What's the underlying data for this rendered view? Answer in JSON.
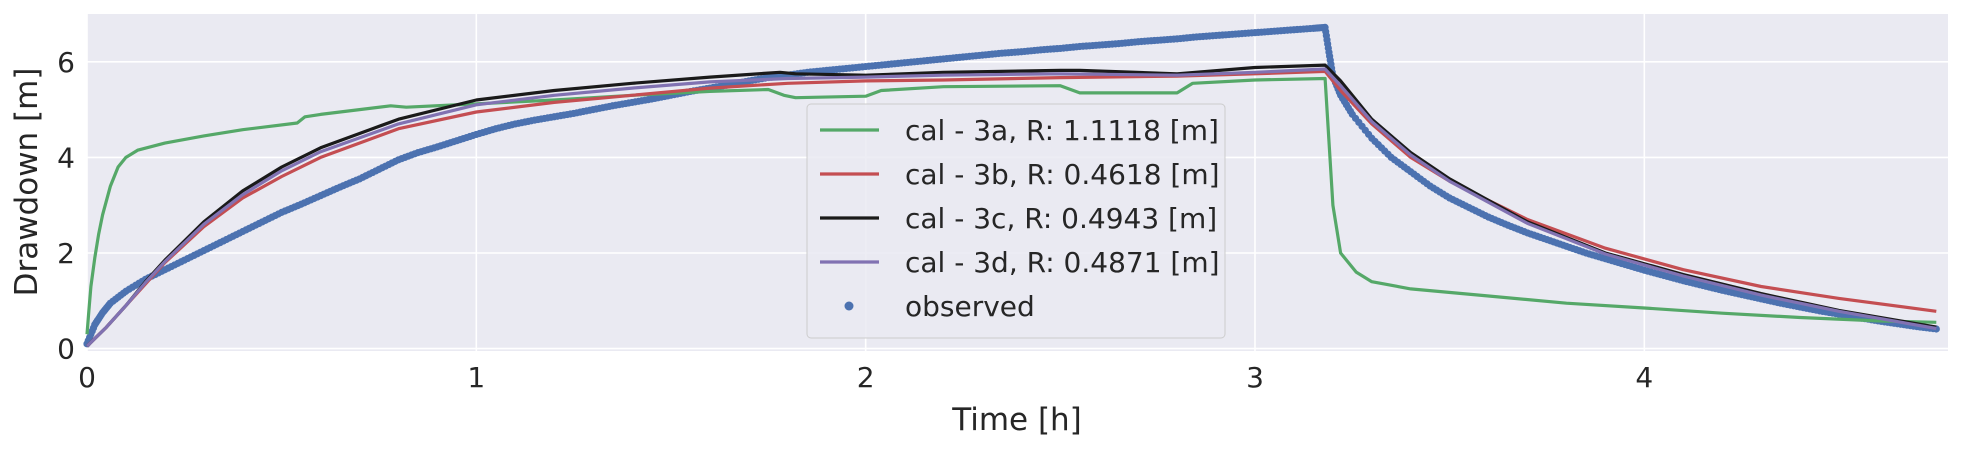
{
  "chart_data": {
    "type": "line",
    "title": "",
    "xlabel": "Time [h]",
    "ylabel": "Drawdown [m]",
    "xlim": [
      0,
      4.78
    ],
    "ylim": [
      -0.05,
      7.0
    ],
    "xticks": [
      0,
      1,
      2,
      3,
      4
    ],
    "yticks": [
      0,
      2,
      4,
      6
    ],
    "grid": true,
    "legend_position": "center",
    "series": [
      {
        "name": "cal - 3a, R: 1.1118 [m]",
        "kind": "line",
        "color": "#55a868",
        "points": [
          [
            0,
            0.3
          ],
          [
            0.005,
            0.8
          ],
          [
            0.01,
            1.3
          ],
          [
            0.02,
            1.9
          ],
          [
            0.03,
            2.4
          ],
          [
            0.04,
            2.8
          ],
          [
            0.06,
            3.4
          ],
          [
            0.08,
            3.8
          ],
          [
            0.1,
            4.0
          ],
          [
            0.13,
            4.15
          ],
          [
            0.2,
            4.3
          ],
          [
            0.3,
            4.45
          ],
          [
            0.4,
            4.58
          ],
          [
            0.54,
            4.72
          ],
          [
            0.56,
            4.85
          ],
          [
            0.6,
            4.9
          ],
          [
            0.7,
            5.0
          ],
          [
            0.78,
            5.08
          ],
          [
            0.82,
            5.05
          ],
          [
            1.0,
            5.12
          ],
          [
            1.2,
            5.2
          ],
          [
            1.4,
            5.3
          ],
          [
            1.6,
            5.38
          ],
          [
            1.75,
            5.42
          ],
          [
            1.79,
            5.3
          ],
          [
            1.82,
            5.25
          ],
          [
            2.0,
            5.28
          ],
          [
            2.04,
            5.4
          ],
          [
            2.2,
            5.48
          ],
          [
            2.5,
            5.5
          ],
          [
            2.55,
            5.35
          ],
          [
            2.8,
            5.35
          ],
          [
            2.84,
            5.55
          ],
          [
            3.0,
            5.62
          ],
          [
            3.18,
            5.65
          ],
          [
            3.2,
            3.0
          ],
          [
            3.22,
            2.0
          ],
          [
            3.26,
            1.6
          ],
          [
            3.3,
            1.4
          ],
          [
            3.4,
            1.25
          ],
          [
            3.6,
            1.1
          ],
          [
            3.8,
            0.95
          ],
          [
            4.0,
            0.85
          ],
          [
            4.2,
            0.74
          ],
          [
            4.4,
            0.65
          ],
          [
            4.6,
            0.58
          ],
          [
            4.75,
            0.55
          ]
        ]
      },
      {
        "name": "cal - 3b, R: 0.4618 [m]",
        "kind": "line",
        "color": "#c44e52",
        "points": [
          [
            0,
            0.05
          ],
          [
            0.05,
            0.45
          ],
          [
            0.1,
            0.9
          ],
          [
            0.15,
            1.35
          ],
          [
            0.2,
            1.8
          ],
          [
            0.3,
            2.55
          ],
          [
            0.4,
            3.15
          ],
          [
            0.5,
            3.6
          ],
          [
            0.6,
            4.0
          ],
          [
            0.8,
            4.6
          ],
          [
            1.0,
            4.95
          ],
          [
            1.2,
            5.15
          ],
          [
            1.4,
            5.3
          ],
          [
            1.6,
            5.45
          ],
          [
            1.8,
            5.55
          ],
          [
            2.0,
            5.6
          ],
          [
            2.2,
            5.62
          ],
          [
            2.5,
            5.67
          ],
          [
            2.8,
            5.7
          ],
          [
            3.0,
            5.75
          ],
          [
            3.18,
            5.8
          ],
          [
            3.22,
            5.4
          ],
          [
            3.3,
            4.7
          ],
          [
            3.4,
            4.0
          ],
          [
            3.5,
            3.5
          ],
          [
            3.7,
            2.7
          ],
          [
            3.9,
            2.1
          ],
          [
            4.1,
            1.65
          ],
          [
            4.3,
            1.3
          ],
          [
            4.5,
            1.05
          ],
          [
            4.75,
            0.78
          ]
        ]
      },
      {
        "name": "cal - 3c, R: 0.4943 [m]",
        "kind": "line",
        "color": "#1a1a1a",
        "points": [
          [
            0,
            0.05
          ],
          [
            0.05,
            0.45
          ],
          [
            0.1,
            0.9
          ],
          [
            0.15,
            1.4
          ],
          [
            0.2,
            1.85
          ],
          [
            0.3,
            2.65
          ],
          [
            0.4,
            3.3
          ],
          [
            0.5,
            3.8
          ],
          [
            0.6,
            4.2
          ],
          [
            0.8,
            4.8
          ],
          [
            1.0,
            5.2
          ],
          [
            1.2,
            5.4
          ],
          [
            1.4,
            5.55
          ],
          [
            1.6,
            5.68
          ],
          [
            1.78,
            5.78
          ],
          [
            1.82,
            5.75
          ],
          [
            2.0,
            5.72
          ],
          [
            2.2,
            5.78
          ],
          [
            2.5,
            5.82
          ],
          [
            2.55,
            5.82
          ],
          [
            2.8,
            5.75
          ],
          [
            3.0,
            5.88
          ],
          [
            3.18,
            5.93
          ],
          [
            3.22,
            5.6
          ],
          [
            3.3,
            4.8
          ],
          [
            3.4,
            4.1
          ],
          [
            3.5,
            3.55
          ],
          [
            3.7,
            2.65
          ],
          [
            3.9,
            2.0
          ],
          [
            4.1,
            1.55
          ],
          [
            4.3,
            1.15
          ],
          [
            4.5,
            0.8
          ],
          [
            4.75,
            0.45
          ]
        ]
      },
      {
        "name": "cal - 3d, R: 0.4871 [m]",
        "kind": "line",
        "color": "#8172b2",
        "points": [
          [
            0,
            0.05
          ],
          [
            0.05,
            0.45
          ],
          [
            0.1,
            0.9
          ],
          [
            0.15,
            1.38
          ],
          [
            0.2,
            1.82
          ],
          [
            0.3,
            2.6
          ],
          [
            0.4,
            3.22
          ],
          [
            0.5,
            3.72
          ],
          [
            0.6,
            4.12
          ],
          [
            0.8,
            4.7
          ],
          [
            1.0,
            5.1
          ],
          [
            1.2,
            5.3
          ],
          [
            1.4,
            5.45
          ],
          [
            1.6,
            5.58
          ],
          [
            1.8,
            5.65
          ],
          [
            2.0,
            5.68
          ],
          [
            2.2,
            5.72
          ],
          [
            2.5,
            5.75
          ],
          [
            2.8,
            5.72
          ],
          [
            3.0,
            5.78
          ],
          [
            3.18,
            5.85
          ],
          [
            3.22,
            5.5
          ],
          [
            3.3,
            4.75
          ],
          [
            3.4,
            4.05
          ],
          [
            3.5,
            3.5
          ],
          [
            3.7,
            2.62
          ],
          [
            3.9,
            1.98
          ],
          [
            4.1,
            1.52
          ],
          [
            4.3,
            1.12
          ],
          [
            4.5,
            0.78
          ],
          [
            4.75,
            0.42
          ]
        ]
      },
      {
        "name": "observed",
        "kind": "scatter",
        "color": "#4c72b0",
        "points": [
          [
            0.0,
            0.1
          ],
          [
            0.02,
            0.5
          ],
          [
            0.04,
            0.75
          ],
          [
            0.06,
            0.95
          ],
          [
            0.1,
            1.2
          ],
          [
            0.15,
            1.45
          ],
          [
            0.2,
            1.65
          ],
          [
            0.25,
            1.85
          ],
          [
            0.3,
            2.05
          ],
          [
            0.35,
            2.25
          ],
          [
            0.4,
            2.45
          ],
          [
            0.45,
            2.65
          ],
          [
            0.5,
            2.85
          ],
          [
            0.55,
            3.02
          ],
          [
            0.6,
            3.2
          ],
          [
            0.65,
            3.38
          ],
          [
            0.7,
            3.55
          ],
          [
            0.75,
            3.75
          ],
          [
            0.8,
            3.95
          ],
          [
            0.85,
            4.1
          ],
          [
            0.9,
            4.22
          ],
          [
            0.95,
            4.35
          ],
          [
            1.0,
            4.48
          ],
          [
            1.05,
            4.6
          ],
          [
            1.1,
            4.7
          ],
          [
            1.15,
            4.78
          ],
          [
            1.2,
            4.85
          ],
          [
            1.25,
            4.92
          ],
          [
            1.3,
            5.0
          ],
          [
            1.35,
            5.08
          ],
          [
            1.4,
            5.15
          ],
          [
            1.45,
            5.22
          ],
          [
            1.5,
            5.3
          ],
          [
            1.55,
            5.38
          ],
          [
            1.6,
            5.45
          ],
          [
            1.65,
            5.52
          ],
          [
            1.7,
            5.6
          ],
          [
            1.75,
            5.67
          ],
          [
            1.8,
            5.72
          ],
          [
            1.85,
            5.78
          ],
          [
            1.9,
            5.82
          ],
          [
            1.95,
            5.86
          ],
          [
            2.0,
            5.9
          ],
          [
            2.05,
            5.94
          ],
          [
            2.1,
            5.98
          ],
          [
            2.15,
            6.02
          ],
          [
            2.2,
            6.06
          ],
          [
            2.25,
            6.1
          ],
          [
            2.3,
            6.14
          ],
          [
            2.35,
            6.18
          ],
          [
            2.4,
            6.21
          ],
          [
            2.45,
            6.25
          ],
          [
            2.5,
            6.28
          ],
          [
            2.55,
            6.32
          ],
          [
            2.6,
            6.35
          ],
          [
            2.65,
            6.38
          ],
          [
            2.7,
            6.42
          ],
          [
            2.75,
            6.45
          ],
          [
            2.8,
            6.48
          ],
          [
            2.85,
            6.52
          ],
          [
            2.9,
            6.55
          ],
          [
            2.95,
            6.58
          ],
          [
            3.0,
            6.61
          ],
          [
            3.05,
            6.64
          ],
          [
            3.1,
            6.67
          ],
          [
            3.15,
            6.7
          ],
          [
            3.18,
            6.72
          ],
          [
            3.19,
            6.2
          ],
          [
            3.2,
            5.7
          ],
          [
            3.22,
            5.3
          ],
          [
            3.25,
            4.9
          ],
          [
            3.3,
            4.4
          ],
          [
            3.35,
            4.0
          ],
          [
            3.4,
            3.7
          ],
          [
            3.45,
            3.4
          ],
          [
            3.5,
            3.15
          ],
          [
            3.55,
            2.95
          ],
          [
            3.6,
            2.75
          ],
          [
            3.65,
            2.58
          ],
          [
            3.7,
            2.42
          ],
          [
            3.75,
            2.28
          ],
          [
            3.8,
            2.14
          ],
          [
            3.85,
            2.0
          ],
          [
            3.9,
            1.88
          ],
          [
            3.95,
            1.76
          ],
          [
            4.0,
            1.64
          ],
          [
            4.05,
            1.53
          ],
          [
            4.1,
            1.42
          ],
          [
            4.15,
            1.32
          ],
          [
            4.2,
            1.22
          ],
          [
            4.25,
            1.13
          ],
          [
            4.3,
            1.04
          ],
          [
            4.35,
            0.95
          ],
          [
            4.4,
            0.87
          ],
          [
            4.45,
            0.79
          ],
          [
            4.5,
            0.72
          ],
          [
            4.55,
            0.65
          ],
          [
            4.6,
            0.58
          ],
          [
            4.65,
            0.52
          ],
          [
            4.7,
            0.46
          ],
          [
            4.75,
            0.41
          ]
        ]
      }
    ]
  }
}
